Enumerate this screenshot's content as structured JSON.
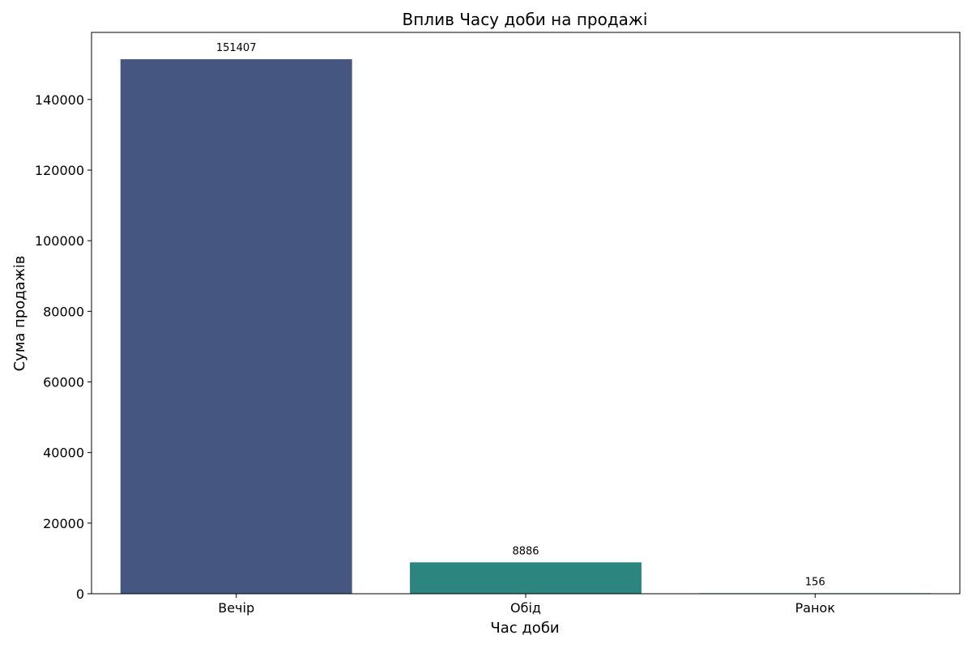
{
  "chart_data": {
    "type": "bar",
    "title": "Вплив Часу доби на продажі",
    "xlabel": "Час доби",
    "ylabel": "Сума продажів",
    "categories": [
      "Вечір",
      "Обід",
      "Ранок"
    ],
    "values": [
      151407,
      8886,
      156
    ],
    "data_labels": [
      "151407",
      "8886",
      "156"
    ],
    "colors": [
      "#455781",
      "#2c857e",
      "#47a05a"
    ],
    "ylim": [
      0,
      159000
    ],
    "yticks": [
      0,
      20000,
      40000,
      60000,
      80000,
      100000,
      120000,
      140000
    ],
    "ytick_labels": [
      "0",
      "20000",
      "40000",
      "60000",
      "80000",
      "100000",
      "120000",
      "140000"
    ],
    "grid": false,
    "legend": "none"
  }
}
